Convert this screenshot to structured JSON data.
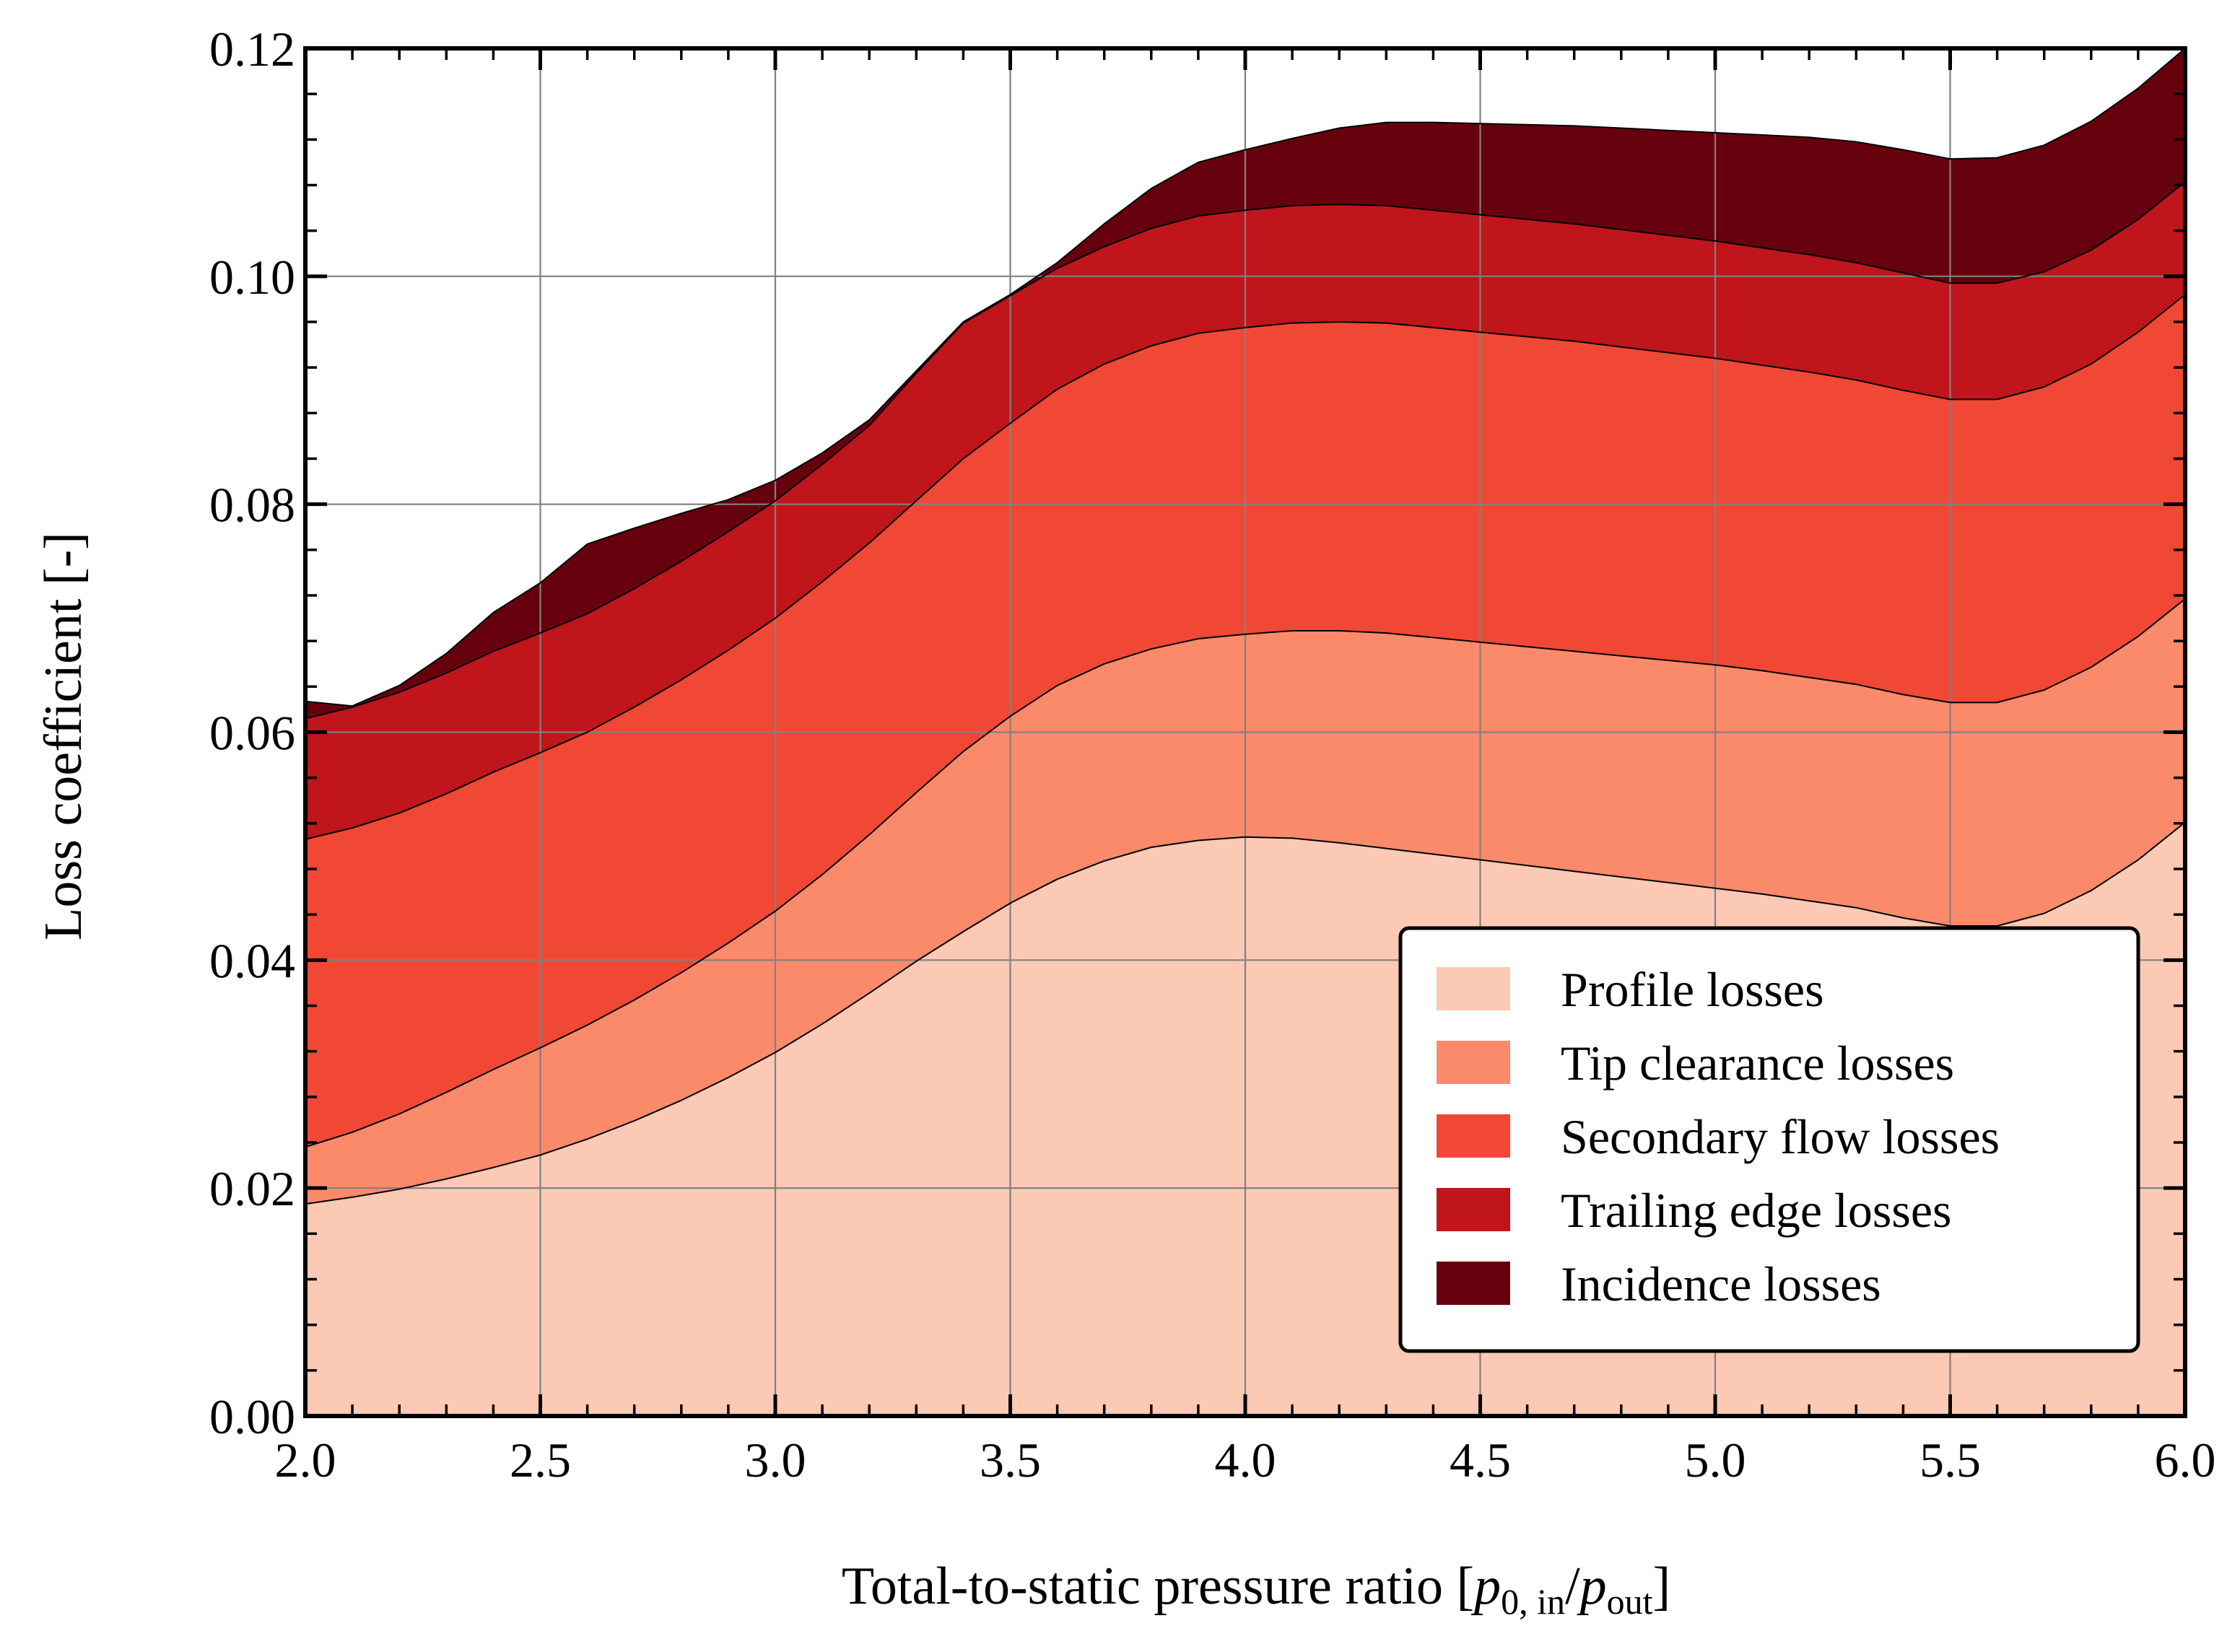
{
  "chart_data": {
    "type": "area",
    "stacked": true,
    "title": "",
    "xlabel": "Total-to-static pressure ratio",
    "xlabel_parts": {
      "prefix": "Total-to-static pressure ratio [",
      "p1": "p",
      "p1_sub": "0, in",
      "slash": "/",
      "p2": "p",
      "p2_sub": "out",
      "suffix": "]"
    },
    "ylabel": "Loss coefficient [-]",
    "xlim": [
      2.0,
      6.0
    ],
    "ylim": [
      0.0,
      0.12
    ],
    "xticks": [
      "2.0",
      "2.5",
      "3.0",
      "3.5",
      "4.0",
      "4.5",
      "5.0",
      "5.5",
      "6.0"
    ],
    "yticks": [
      "0.00",
      "0.02",
      "0.04",
      "0.06",
      "0.08",
      "0.10",
      "0.12"
    ],
    "grid": true,
    "legend_position": "lower-right",
    "x": [
      2.0,
      2.1,
      2.2,
      2.3,
      2.4,
      2.5,
      2.6,
      2.7,
      2.8,
      2.9,
      3.0,
      3.1,
      3.2,
      3.3,
      3.4,
      3.5,
      3.6,
      3.7,
      3.8,
      3.9,
      4.0,
      4.1,
      4.2,
      4.3,
      4.4,
      4.5,
      4.6,
      4.7,
      4.8,
      4.9,
      5.0,
      5.1,
      5.2,
      5.3,
      5.4,
      5.5,
      5.6,
      5.7,
      5.8,
      5.9,
      6.0
    ],
    "series": [
      {
        "name": "Profile losses",
        "color": "#fcc9b4",
        "values": [
          0.0186,
          0.0192,
          0.0199,
          0.0208,
          0.0218,
          0.0229,
          0.0243,
          0.0259,
          0.0277,
          0.0297,
          0.0319,
          0.0344,
          0.0371,
          0.0399,
          0.0425,
          0.045,
          0.0471,
          0.0487,
          0.0499,
          0.0505,
          0.0508,
          0.0507,
          0.0503,
          0.0498,
          0.0493,
          0.0488,
          0.0483,
          0.0478,
          0.0473,
          0.0468,
          0.0463,
          0.0458,
          0.0452,
          0.0446,
          0.0437,
          0.043,
          0.043,
          0.0441,
          0.0461,
          0.0488,
          0.0521
        ]
      },
      {
        "name": "Tip clearance losses",
        "color": "#fb8a6b",
        "values": [
          0.005,
          0.0057,
          0.0066,
          0.0076,
          0.0086,
          0.0094,
          0.01,
          0.0106,
          0.0112,
          0.0118,
          0.0124,
          0.0131,
          0.0139,
          0.0148,
          0.0158,
          0.0164,
          0.017,
          0.0173,
          0.0174,
          0.0177,
          0.0178,
          0.0182,
          0.0186,
          0.0189,
          0.019,
          0.0191,
          0.0192,
          0.0193,
          0.0194,
          0.0195,
          0.0196,
          0.0196,
          0.0196,
          0.0196,
          0.0196,
          0.0196,
          0.0196,
          0.0196,
          0.0196,
          0.0196,
          0.0196
        ]
      },
      {
        "name": "Secondary flow losses",
        "color": "#f04835",
        "values": [
          0.027,
          0.0267,
          0.0264,
          0.0262,
          0.0261,
          0.0259,
          0.0257,
          0.0257,
          0.0257,
          0.0257,
          0.0257,
          0.0257,
          0.0256,
          0.0256,
          0.0257,
          0.0257,
          0.026,
          0.0263,
          0.0266,
          0.0268,
          0.0269,
          0.027,
          0.0271,
          0.0272,
          0.0272,
          0.0272,
          0.0272,
          0.0272,
          0.0271,
          0.027,
          0.0269,
          0.0268,
          0.0268,
          0.0267,
          0.0267,
          0.0266,
          0.0266,
          0.0266,
          0.0266,
          0.0267,
          0.0267
        ]
      },
      {
        "name": "Trailing edge losses",
        "color": "#bf151b",
        "values": [
          0.0106,
          0.0106,
          0.0106,
          0.0106,
          0.0106,
          0.0105,
          0.0104,
          0.0104,
          0.0104,
          0.0104,
          0.0103,
          0.0103,
          0.0103,
          0.0112,
          0.0119,
          0.0112,
          0.0106,
          0.0103,
          0.0103,
          0.0103,
          0.0103,
          0.0103,
          0.0103,
          0.0103,
          0.0103,
          0.0103,
          0.0103,
          0.0103,
          0.0103,
          0.0103,
          0.0103,
          0.0103,
          0.0103,
          0.0103,
          0.0103,
          0.0102,
          0.0102,
          0.0101,
          0.01,
          0.0099,
          0.0099
        ]
      },
      {
        "name": "Incidence losses",
        "color": "#67000d",
        "values": [
          0.0015,
          0.0001,
          0.0006,
          0.0017,
          0.0034,
          0.0044,
          0.0061,
          0.0053,
          0.0042,
          0.0028,
          0.0018,
          0.001,
          0.0005,
          0.0002,
          0.0001,
          0.0001,
          0.0005,
          0.002,
          0.0035,
          0.0047,
          0.0053,
          0.0059,
          0.0067,
          0.0073,
          0.0077,
          0.008,
          0.0083,
          0.0086,
          0.0089,
          0.0092,
          0.0095,
          0.0099,
          0.0103,
          0.0106,
          0.0108,
          0.0109,
          0.011,
          0.0111,
          0.0113,
          0.0115,
          0.0117
        ]
      }
    ]
  }
}
